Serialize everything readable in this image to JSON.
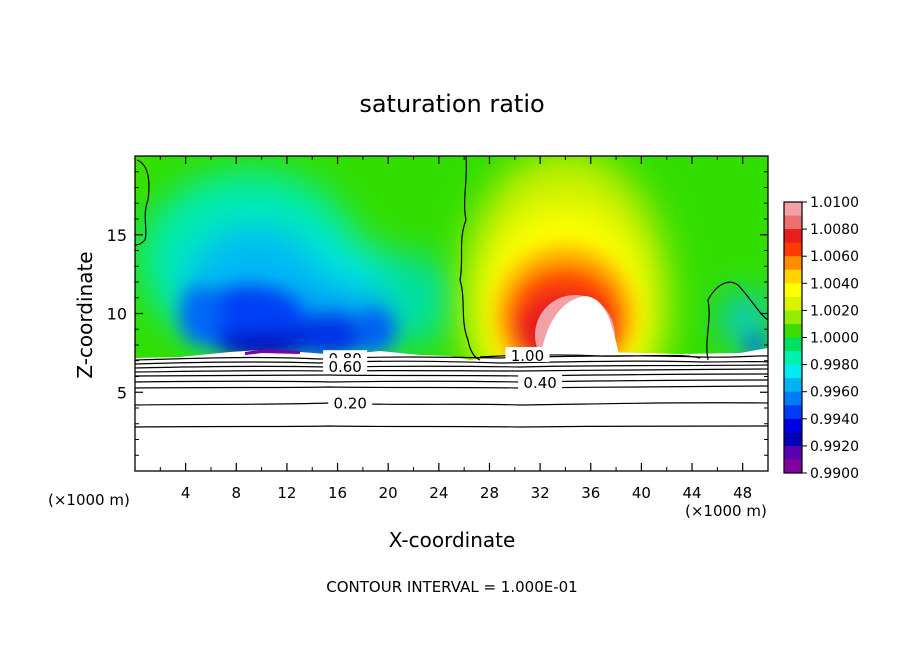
{
  "chart_data": {
    "type": "heatmap",
    "title": "saturation ratio",
    "xlabel": "X-coordinate",
    "ylabel": "Z-coordinate",
    "x_unit_left": "(×1000 m)",
    "x_unit_right": "(×1000 m)",
    "footer": "CONTOUR INTERVAL = 1.000E-01",
    "xlim": [
      0,
      50
    ],
    "ylim": [
      0,
      20
    ],
    "x_ticks": [
      4,
      8,
      12,
      16,
      20,
      24,
      28,
      32,
      36,
      40,
      44,
      48
    ],
    "y_ticks": [
      5,
      10,
      15
    ],
    "colorbar": {
      "min": 0.99,
      "max": 1.01,
      "labels": [
        "1.0100",
        "1.0080",
        "1.0060",
        "1.0040",
        "1.0020",
        "1.0000",
        "0.9980",
        "0.9960",
        "0.9940",
        "0.9920",
        "0.9900"
      ],
      "colors": [
        "#f3a0a6",
        "#ef6e6e",
        "#e81e1e",
        "#ff3a00",
        "#ff8c00",
        "#ffd200",
        "#ffff00",
        "#d8f500",
        "#94ec00",
        "#3fdc00",
        "#00e060",
        "#00f0b0",
        "#00ecf0",
        "#00b4f4",
        "#007cf6",
        "#003cf8",
        "#0000e6",
        "#0000b4",
        "#5a00b0",
        "#8000a0"
      ]
    },
    "contour_labels": [
      {
        "text": "0.80",
        "x": 16.6,
        "z": 7.1
      },
      {
        "text": "0.60",
        "x": 16.6,
        "z": 6.6
      },
      {
        "text": "1.00",
        "x": 31.0,
        "z": 7.3
      },
      {
        "text": "0.40",
        "x": 32.0,
        "z": 5.6
      },
      {
        "text": "0.20",
        "x": 17.0,
        "z": 4.3
      }
    ]
  }
}
